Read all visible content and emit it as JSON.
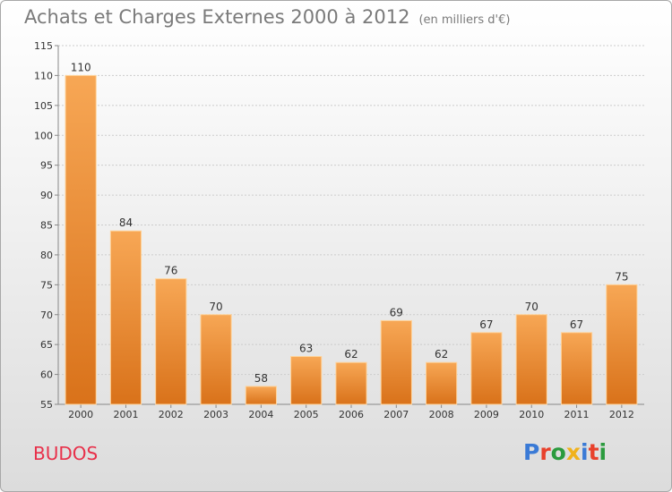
{
  "header": {
    "title": "Achats et Charges Externes 2000 à 2012",
    "unit": "(en milliers d'€)"
  },
  "footer": {
    "commune": "BUDOS",
    "logo": "Proxiti",
    "logo_colors": [
      "#3a7ad6",
      "#e8412c",
      "#2b9b3e",
      "#f0b21c",
      "#3a7ad6",
      "#e8412c",
      "#2b9b3e"
    ]
  },
  "colors": {
    "bar_top": "#f7a755",
    "bar_bottom": "#d9721a",
    "bar_edge": "#ffd39a",
    "grid": "#cccccc"
  },
  "chart_data": {
    "type": "bar",
    "categories": [
      "2000",
      "2001",
      "2002",
      "2003",
      "2004",
      "2005",
      "2006",
      "2007",
      "2008",
      "2009",
      "2010",
      "2011",
      "2012"
    ],
    "values": [
      110,
      84,
      76,
      70,
      58,
      63,
      62,
      69,
      62,
      67,
      70,
      67,
      75
    ],
    "ylim": [
      55,
      115
    ],
    "yticks": [
      55,
      60,
      65,
      70,
      75,
      80,
      85,
      90,
      95,
      100,
      105,
      110,
      115
    ],
    "grid": true,
    "title": "Achats et Charges Externes 2000 à 2012"
  }
}
